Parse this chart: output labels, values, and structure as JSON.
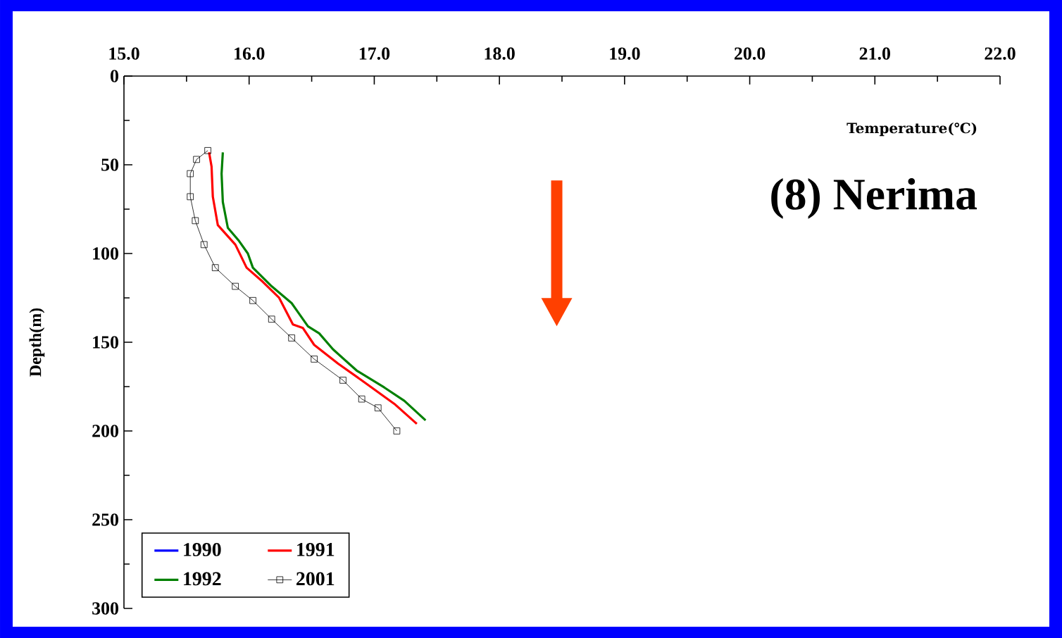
{
  "chart_data": {
    "type": "line",
    "xlabel": "Temperature(℃)",
    "ylabel": "Depth(m)",
    "annotations": [
      "(8) Nerima"
    ],
    "xlim": [
      15.0,
      22.0
    ],
    "xticks": [
      {
        "value": 15,
        "label": "15.0"
      },
      {
        "value": 16,
        "label": "16.0"
      },
      {
        "value": 17,
        "label": "17.0"
      },
      {
        "value": 18,
        "label": "18.0"
      },
      {
        "value": 19,
        "label": "19.0"
      },
      {
        "value": 20,
        "label": "20.0"
      },
      {
        "value": 21,
        "label": "21.0"
      },
      {
        "value": 22,
        "label": "22.0"
      }
    ],
    "ylim": [
      300,
      0
    ],
    "yticks": [
      0,
      50,
      100,
      150,
      200,
      250,
      300
    ],
    "grid": false,
    "legend": "bottom left",
    "series": [
      {
        "name": "1990",
        "color": "#0000ff",
        "marker": "none",
        "x": [
          null
        ],
        "values": [
          null
        ]
      },
      {
        "name": "1991",
        "color": "#ff0000",
        "marker": "none",
        "x": [
          15.68,
          15.7,
          15.71,
          15.75,
          15.89,
          15.98,
          16.11,
          16.24,
          16.35,
          16.43,
          16.52,
          16.71,
          16.93,
          17.16,
          17.34
        ],
        "values": [
          43,
          51,
          68,
          84,
          95,
          108,
          116,
          125,
          140,
          142,
          151.5,
          162,
          173,
          184.7,
          196
        ]
      },
      {
        "name": "1992",
        "color": "#008000",
        "marker": "none",
        "x": [
          15.79,
          15.78,
          15.79,
          15.83,
          15.92,
          15.99,
          16.03,
          16.18,
          16.34,
          16.39,
          16.47,
          16.56,
          16.67,
          16.86,
          17.08,
          17.24,
          17.41
        ],
        "values": [
          43,
          55,
          71,
          85.5,
          93,
          100,
          108,
          118.5,
          128,
          133,
          141,
          145,
          154,
          166,
          175.5,
          183,
          194
        ]
      },
      {
        "name": "2001",
        "color": "#000000",
        "marker": "square",
        "x": [
          15.67,
          15.58,
          15.53,
          15.53,
          15.57,
          15.64,
          15.73,
          15.89,
          16.03,
          16.18,
          16.34,
          16.52,
          16.75,
          16.9,
          17.03,
          17.18
        ],
        "values": [
          42,
          47,
          55,
          68,
          81.5,
          95,
          108,
          118.5,
          126.5,
          137,
          147.6,
          159.5,
          171.4,
          182,
          187,
          200
        ]
      }
    ]
  }
}
